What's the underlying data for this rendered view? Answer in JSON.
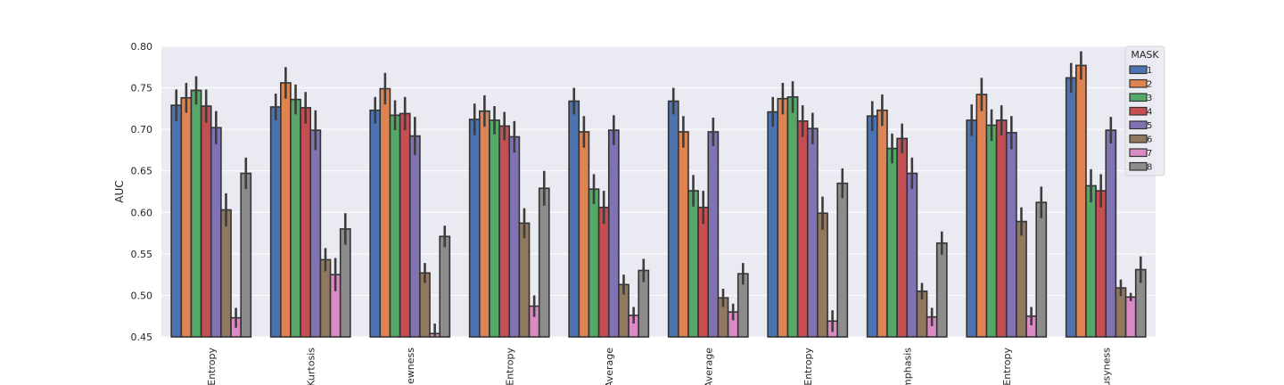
{
  "chart_data": {
    "type": "bar",
    "ylabel": "AUC",
    "xlabel": "",
    "ylim": [
      0.45,
      0.8
    ],
    "yticks": [
      "0.80",
      "0.75",
      "0.70",
      "0.65",
      "0.60",
      "0.55",
      "0.50",
      "0.45"
    ],
    "grid": true,
    "categories": [
      "Entropy",
      "Kurtosis",
      "ewness",
      "Entropy",
      "Average",
      "Average",
      "Entropy",
      "mphasis",
      "Entropy",
      "usyness"
    ],
    "legend": {
      "title": "MASK",
      "placement": "top-right"
    },
    "series": [
      {
        "name": "1",
        "color": "#4c72b0",
        "values": [
          0.729,
          0.727,
          0.723,
          0.712,
          0.734,
          0.734,
          0.721,
          0.716,
          0.711,
          0.762
        ],
        "errors": [
          0.019,
          0.016,
          0.016,
          0.019,
          0.016,
          0.016,
          0.018,
          0.018,
          0.019,
          0.018
        ]
      },
      {
        "name": "2",
        "color": "#dd8452",
        "values": [
          0.738,
          0.756,
          0.749,
          0.722,
          0.697,
          0.697,
          0.737,
          0.723,
          0.742,
          0.777
        ],
        "errors": [
          0.018,
          0.019,
          0.019,
          0.019,
          0.019,
          0.019,
          0.019,
          0.019,
          0.02,
          0.017
        ]
      },
      {
        "name": "3",
        "color": "#55a868",
        "values": [
          0.747,
          0.736,
          0.717,
          0.711,
          0.628,
          0.626,
          0.739,
          0.677,
          0.705,
          0.632
        ],
        "errors": [
          0.017,
          0.018,
          0.018,
          0.017,
          0.018,
          0.019,
          0.019,
          0.018,
          0.019,
          0.02
        ]
      },
      {
        "name": "4",
        "color": "#c44e52",
        "values": [
          0.728,
          0.726,
          0.719,
          0.704,
          0.606,
          0.606,
          0.71,
          0.689,
          0.711,
          0.626
        ],
        "errors": [
          0.02,
          0.019,
          0.02,
          0.017,
          0.02,
          0.02,
          0.019,
          0.018,
          0.018,
          0.02
        ]
      },
      {
        "name": "5",
        "color": "#8172b3",
        "values": [
          0.702,
          0.699,
          0.692,
          0.691,
          0.699,
          0.697,
          0.701,
          0.647,
          0.696,
          0.699
        ],
        "errors": [
          0.02,
          0.024,
          0.023,
          0.019,
          0.018,
          0.017,
          0.019,
          0.019,
          0.02,
          0.016
        ]
      },
      {
        "name": "6",
        "color": "#937860",
        "values": [
          0.603,
          0.543,
          0.527,
          0.587,
          0.513,
          0.497,
          0.599,
          0.505,
          0.589,
          0.509
        ],
        "errors": [
          0.02,
          0.014,
          0.012,
          0.018,
          0.012,
          0.011,
          0.02,
          0.01,
          0.017,
          0.01
        ]
      },
      {
        "name": "7",
        "color": "#da8bc3",
        "values": [
          0.473,
          0.525,
          0.454,
          0.487,
          0.476,
          0.48,
          0.469,
          0.474,
          0.475,
          0.498
        ],
        "errors": [
          0.012,
          0.02,
          0.012,
          0.013,
          0.01,
          0.01,
          0.013,
          0.011,
          0.011,
          0.005
        ]
      },
      {
        "name": "8",
        "color": "#8c8c8c",
        "values": [
          0.647,
          0.58,
          0.571,
          0.629,
          0.53,
          0.526,
          0.635,
          0.563,
          0.612,
          0.531
        ],
        "errors": [
          0.019,
          0.019,
          0.013,
          0.021,
          0.014,
          0.013,
          0.018,
          0.014,
          0.019,
          0.016
        ]
      }
    ]
  }
}
